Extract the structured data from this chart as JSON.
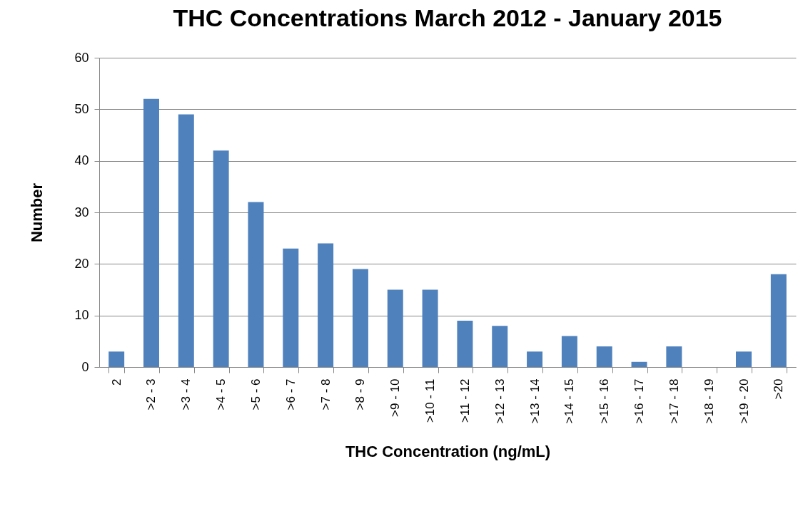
{
  "chart_data": {
    "type": "bar",
    "title": "THC Concentrations March 2012 - January 2015",
    "xlabel": "THC Concentration  (ng/mL)",
    "ylabel": "Number",
    "categories": [
      "2",
      ">2 - 3",
      ">3 - 4",
      ">4 - 5",
      ">5 - 6",
      ">6 - 7",
      ">7 - 8",
      ">8 - 9",
      ">9 - 10",
      ">10 - 11",
      ">11 - 12",
      ">12 - 13",
      ">13 - 14",
      ">14 - 15",
      ">15 - 16",
      ">16 - 17",
      ">17 - 18",
      ">18 - 19",
      ">19 - 20",
      ">20"
    ],
    "values": [
      3,
      52,
      49,
      42,
      32,
      23,
      24,
      19,
      15,
      15,
      9,
      8,
      3,
      6,
      4,
      1,
      4,
      0,
      3,
      18
    ],
    "color": "#4f81bd",
    "ylim": [
      0,
      60
    ],
    "yticks": [
      0,
      10,
      20,
      30,
      40,
      50,
      60
    ],
    "grid": "y"
  }
}
